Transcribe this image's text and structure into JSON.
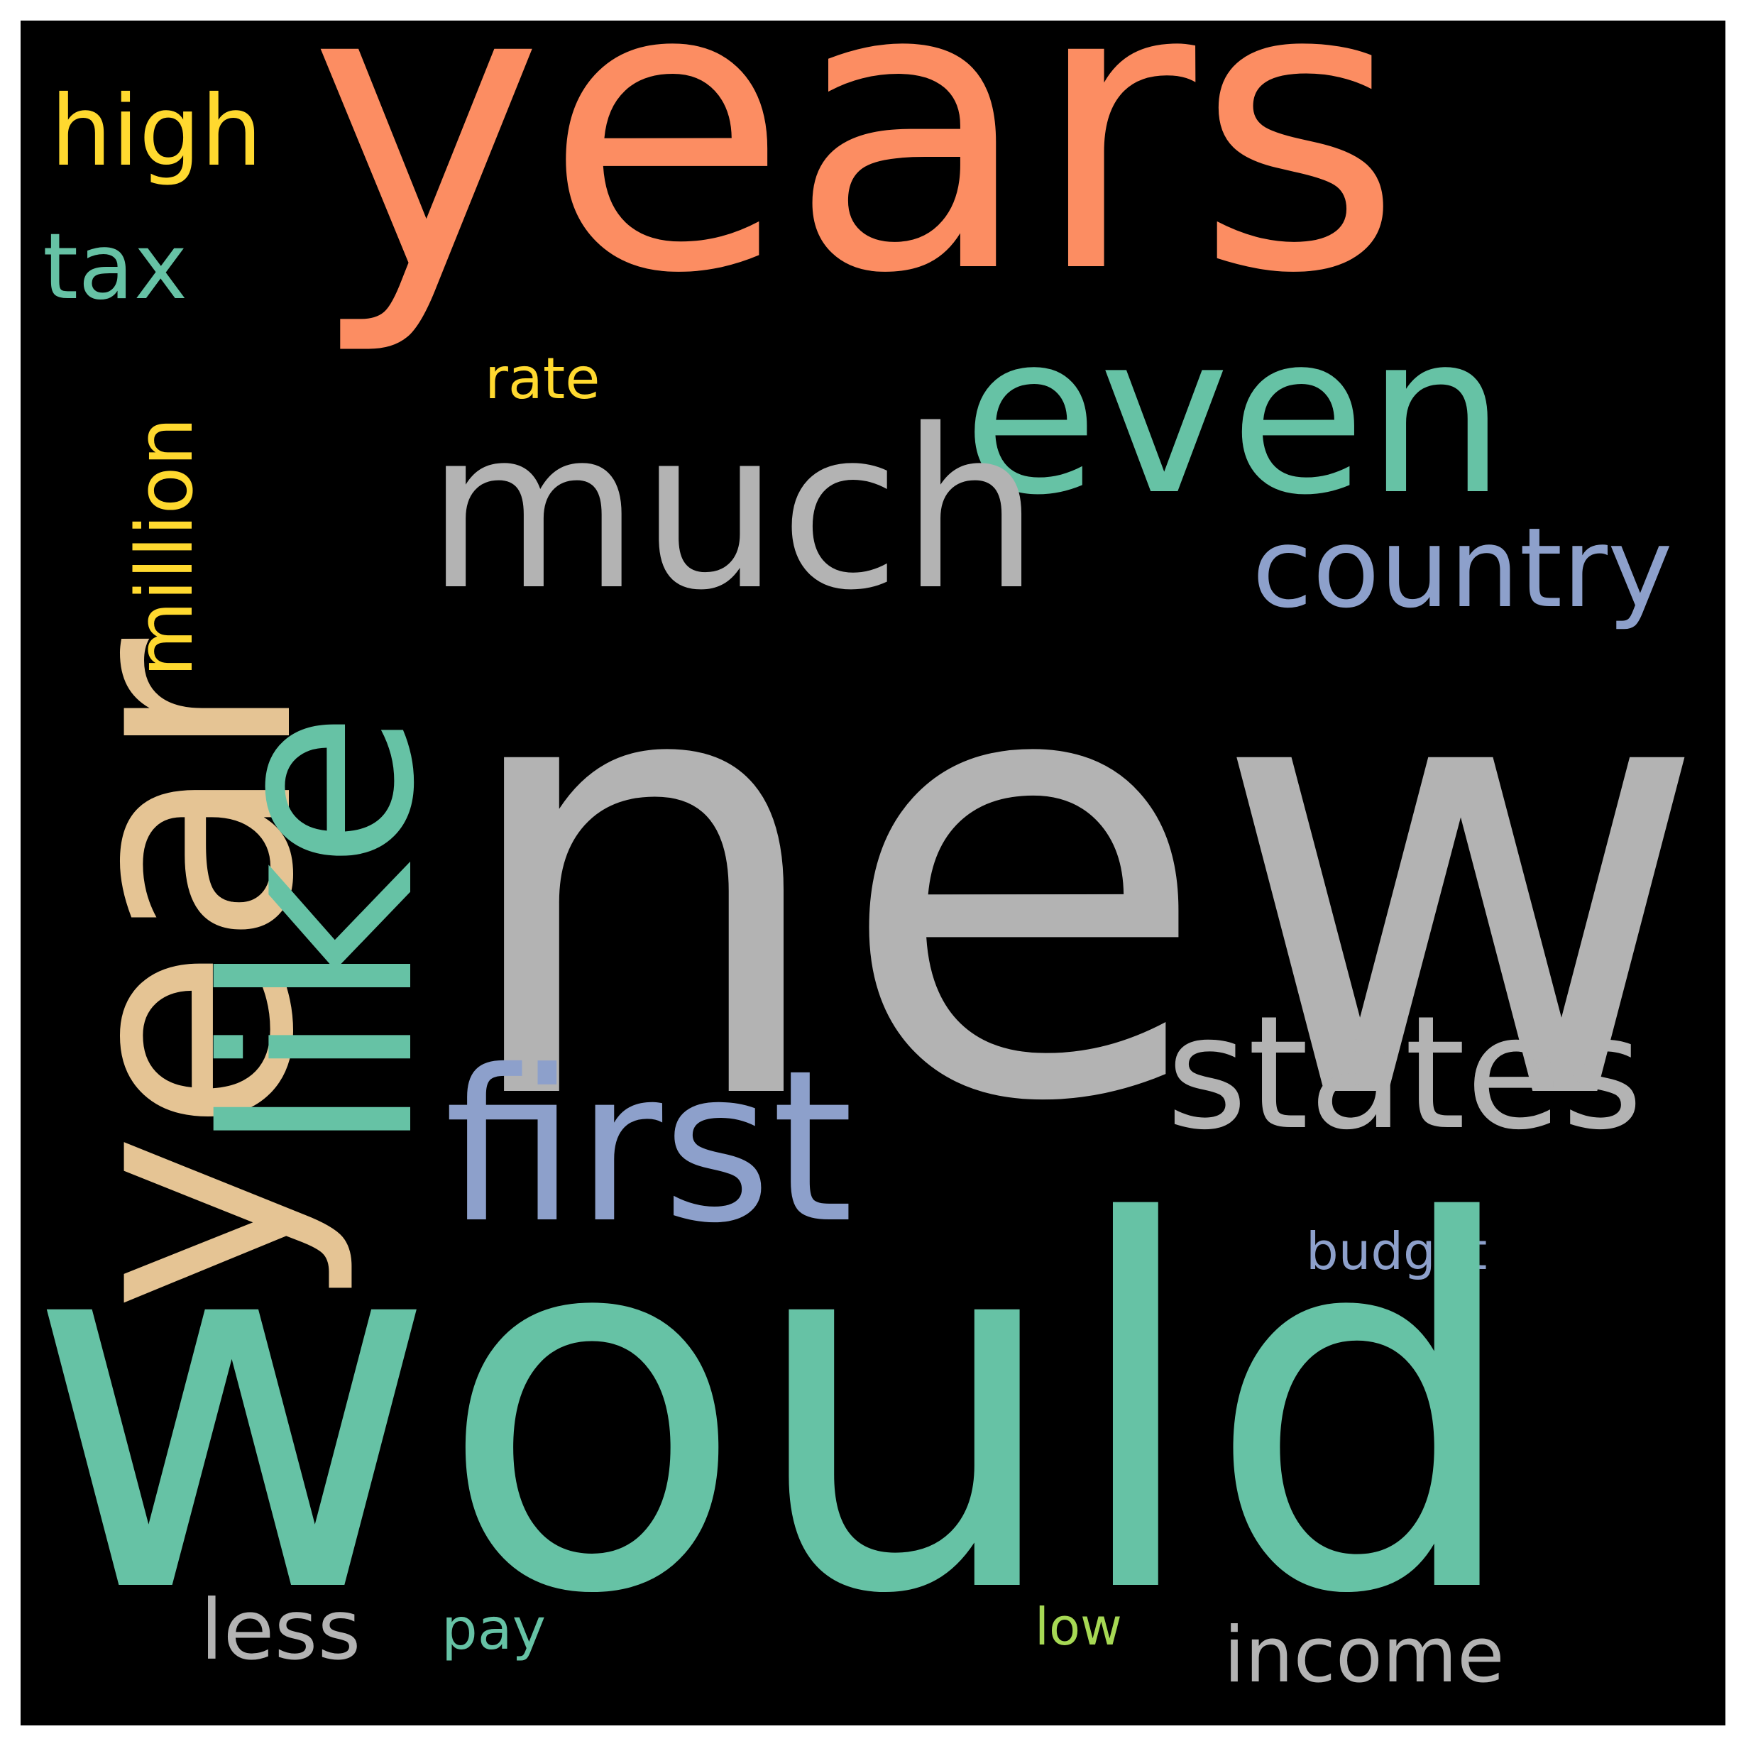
{
  "background_color": "#000000",
  "words": {
    "new": {
      "text": "new",
      "color": "#b3b3b3"
    },
    "would": {
      "text": "would",
      "color": "#66c2a5"
    },
    "years": {
      "text": "years",
      "color": "#fc8d62"
    },
    "year": {
      "text": "year",
      "color": "#e5c494"
    },
    "like": {
      "text": "like",
      "color": "#66c2a5"
    },
    "even": {
      "text": "even",
      "color": "#66c2a5"
    },
    "much": {
      "text": "much",
      "color": "#b3b3b3"
    },
    "first": {
      "text": "first",
      "color": "#8da0cb"
    },
    "states": {
      "text": "states",
      "color": "#b3b3b3"
    },
    "country": {
      "text": "country",
      "color": "#8da0cb"
    },
    "high": {
      "text": "high",
      "color": "#ffd92f"
    },
    "tax": {
      "text": "tax",
      "color": "#66c2a5"
    },
    "million": {
      "text": "million",
      "color": "#ffd92f"
    },
    "rate": {
      "text": "rate",
      "color": "#ffd92f"
    },
    "budget": {
      "text": "budget",
      "color": "#8da0cb"
    },
    "less": {
      "text": "less",
      "color": "#b3b3b3"
    },
    "pay": {
      "text": "pay",
      "color": "#66c2a5"
    },
    "low": {
      "text": "low",
      "color": "#a6d854"
    },
    "income": {
      "text": "income",
      "color": "#b3b3b3"
    }
  }
}
